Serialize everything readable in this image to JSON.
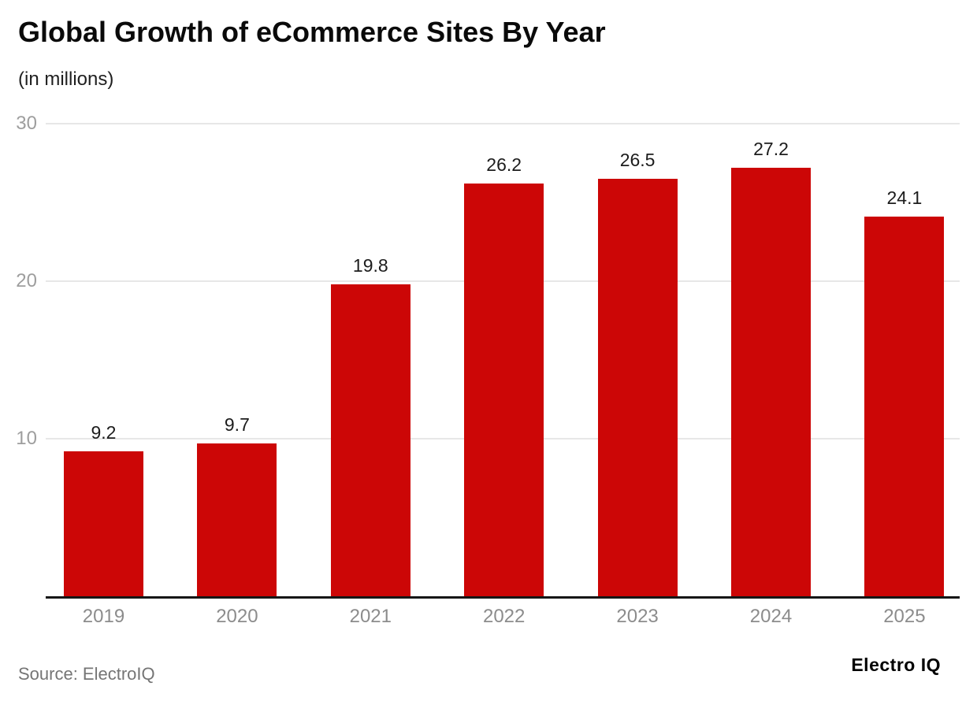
{
  "header": {
    "title": "Global Growth of eCommerce Sites By Year",
    "subtitle": "(in millions)"
  },
  "footer": {
    "source": "Source: ElectroIQ",
    "brand": "Electro IQ"
  },
  "chart_data": {
    "type": "bar",
    "title": "Global Growth of eCommerce Sites By Year",
    "subtitle": "(in millions)",
    "categories": [
      "2019",
      "2020",
      "2021",
      "2022",
      "2023",
      "2024",
      "2025"
    ],
    "values": [
      9.2,
      9.7,
      19.8,
      26.2,
      26.5,
      27.2,
      24.1
    ],
    "value_labels": [
      "9.2",
      "9.7",
      "19.8",
      "26.2",
      "26.5",
      "27.2",
      "24.1"
    ],
    "xlabel": "",
    "ylabel": "",
    "ylim": [
      0,
      30
    ],
    "yticks": [
      10,
      20,
      30
    ],
    "grid": true,
    "legend": "none",
    "colors": {
      "bar": "#cc0606",
      "gridline": "#e7e7e7",
      "axis_line": "#161616",
      "y_tick_label": "#9e9e9e",
      "x_tick_label": "#8c8c8c",
      "value_label": "#1c1c1c",
      "background": "#ffffff"
    }
  }
}
